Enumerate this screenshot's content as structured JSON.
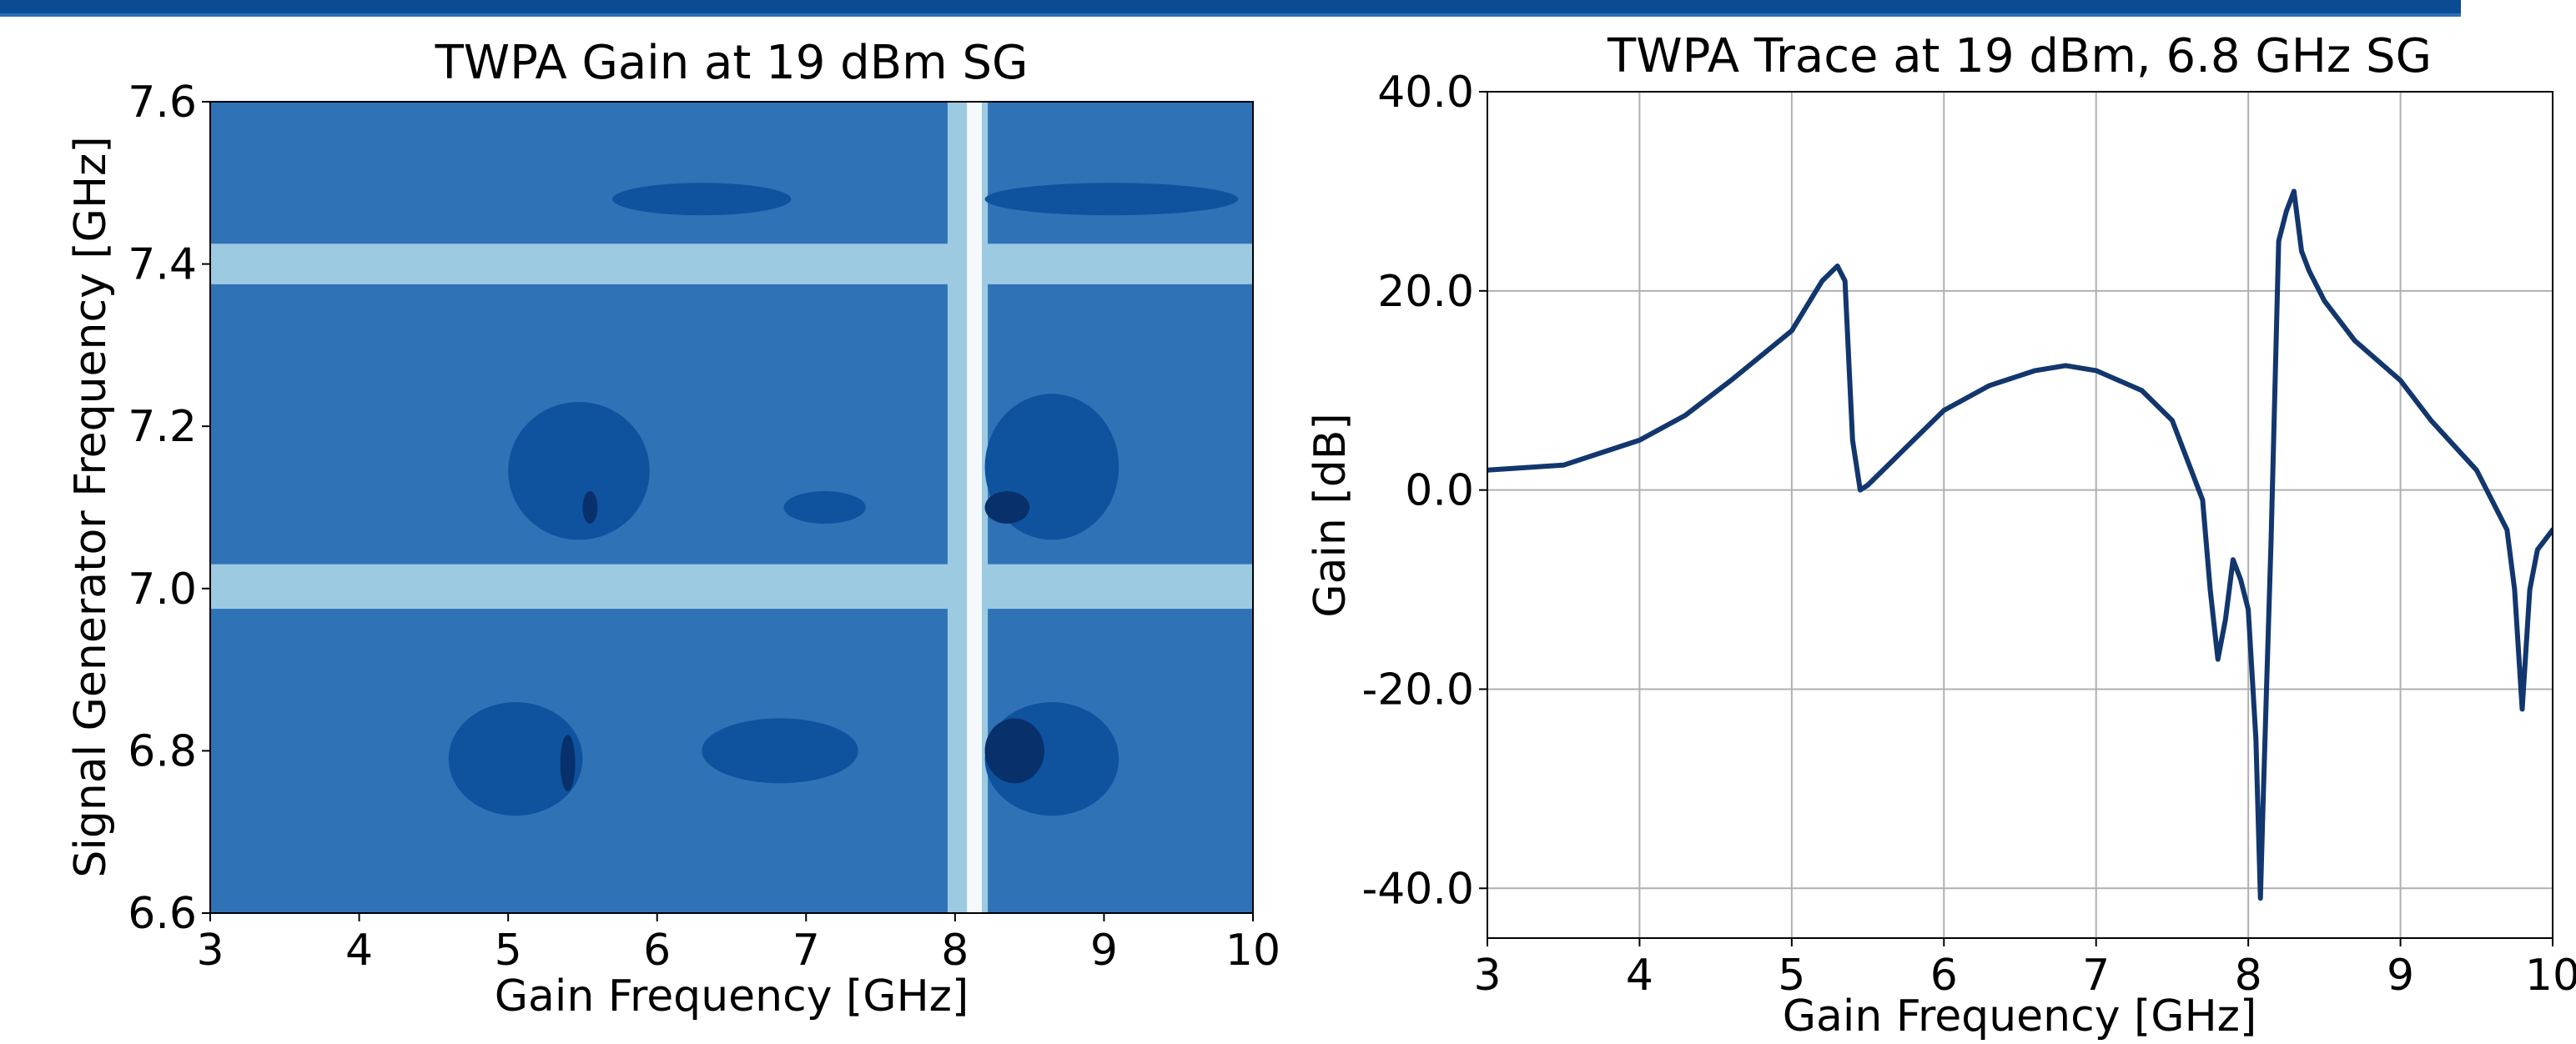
{
  "header": {
    "bar_color": "#0b4b94"
  },
  "chart_data": [
    {
      "type": "heatmap",
      "title": "TWPA Gain at 19 dBm SG",
      "xlabel": "Gain Frequency [GHz]",
      "ylabel": "Signal Generator Frequency [GHz]",
      "xlim": [
        3,
        10
      ],
      "ylim": [
        6.6,
        7.6
      ],
      "xticks": [
        "3",
        "4",
        "5",
        "6",
        "7",
        "8",
        "9",
        "10"
      ],
      "xtick_values": [
        3,
        4,
        5,
        6,
        7,
        8,
        9,
        10
      ],
      "yticks": [
        "6.6",
        "6.8",
        "7.0",
        "7.2",
        "7.4",
        "7.6"
      ],
      "ytick_values": [
        6.6,
        6.8,
        7.0,
        7.2,
        7.4,
        7.6
      ],
      "grid": false,
      "colormap": "Blues (filled contour levels)",
      "level_colors": [
        "#f5f9fd",
        "#9ccae1",
        "#4493c7",
        "#2f72b6",
        "#0f539f",
        "#08306b"
      ],
      "background_color": "#2f72b6",
      "bands": [
        {
          "orientation": "horizontal",
          "y0": 7.375,
          "y1": 7.425,
          "level": 1
        },
        {
          "orientation": "horizontal",
          "y0": 6.975,
          "y1": 7.03,
          "level": 1
        },
        {
          "orientation": "vertical",
          "x0": 7.95,
          "x1": 8.22,
          "level": 1
        },
        {
          "orientation": "vertical",
          "x0": 8.08,
          "x1": 8.18,
          "level": 0
        }
      ],
      "regions": [
        {
          "x": 4.6,
          "x1": 5.5,
          "y0": 6.72,
          "y1": 6.86,
          "level": 4
        },
        {
          "x": 5.35,
          "x1": 5.45,
          "y0": 6.75,
          "y1": 6.82,
          "level": 5
        },
        {
          "x": 6.3,
          "x1": 7.35,
          "y0": 6.76,
          "y1": 6.84,
          "level": 4
        },
        {
          "x": 8.2,
          "x1": 9.1,
          "y0": 6.72,
          "y1": 6.86,
          "level": 4
        },
        {
          "x": 8.2,
          "x1": 8.6,
          "y0": 6.76,
          "y1": 6.84,
          "level": 5
        },
        {
          "x": 5.0,
          "x1": 5.95,
          "y0": 7.06,
          "y1": 7.23,
          "level": 4
        },
        {
          "x": 5.5,
          "x1": 5.6,
          "y0": 7.08,
          "y1": 7.12,
          "level": 5
        },
        {
          "x": 6.85,
          "x1": 7.4,
          "y0": 7.08,
          "y1": 7.12,
          "level": 4
        },
        {
          "x": 8.2,
          "x1": 9.1,
          "y0": 7.06,
          "y1": 7.24,
          "level": 4
        },
        {
          "x": 8.2,
          "x1": 8.5,
          "y0": 7.08,
          "y1": 7.12,
          "level": 5
        },
        {
          "x": 5.7,
          "x1": 6.9,
          "y0": 7.46,
          "y1": 7.5,
          "level": 4
        },
        {
          "x": 8.2,
          "x1": 9.9,
          "y0": 7.46,
          "y1": 7.5,
          "level": 4
        }
      ]
    },
    {
      "type": "line",
      "title": "TWPA Trace at 19 dBm, 6.8 GHz SG",
      "xlabel": "Gain Frequency [GHz]",
      "ylabel": "Gain [dB]",
      "xlim": [
        3,
        10
      ],
      "ylim": [
        -45,
        40
      ],
      "xticks": [
        "3",
        "4",
        "5",
        "6",
        "7",
        "8",
        "9",
        "10"
      ],
      "xtick_values": [
        3,
        4,
        5,
        6,
        7,
        8,
        9,
        10
      ],
      "yticks": [
        "-40.0",
        "-20.0",
        "0.0",
        "20.0",
        "40.0"
      ],
      "ytick_values": [
        -40,
        -20,
        0,
        20,
        40
      ],
      "grid": true,
      "line_color": "#12366e",
      "series": [
        {
          "x": [
            3.0,
            3.5,
            4.0,
            4.3,
            4.6,
            4.8,
            5.0,
            5.1,
            5.2,
            5.3,
            5.35,
            5.4,
            5.45,
            5.5,
            5.6,
            5.8,
            6.0,
            6.3,
            6.6,
            6.8,
            7.0,
            7.3,
            7.5,
            7.7,
            7.75,
            7.8,
            7.85,
            7.9,
            7.95,
            8.0,
            8.05,
            8.08,
            8.1,
            8.12,
            8.15,
            8.2,
            8.25,
            8.3,
            8.35,
            8.4,
            8.5,
            8.7,
            9.0,
            9.2,
            9.5,
            9.7,
            9.75,
            9.8,
            9.85,
            9.9,
            10.0
          ],
          "y": [
            2.0,
            2.5,
            5.0,
            7.5,
            11.0,
            13.5,
            16.0,
            18.5,
            21.0,
            22.5,
            21.0,
            5.0,
            0.0,
            0.5,
            2.0,
            5.0,
            8.0,
            10.5,
            12.0,
            12.5,
            12.0,
            10.0,
            7.0,
            -1.0,
            -10.0,
            -17.0,
            -13.0,
            -7.0,
            -9.0,
            -12.0,
            -25.0,
            -41.0,
            -30.0,
            -20.0,
            -5.0,
            25.0,
            28.0,
            30.0,
            24.0,
            22.0,
            19.0,
            15.0,
            11.0,
            7.0,
            2.0,
            -4.0,
            -10.0,
            -22.0,
            -10.0,
            -6.0,
            -4.0
          ]
        }
      ]
    }
  ]
}
